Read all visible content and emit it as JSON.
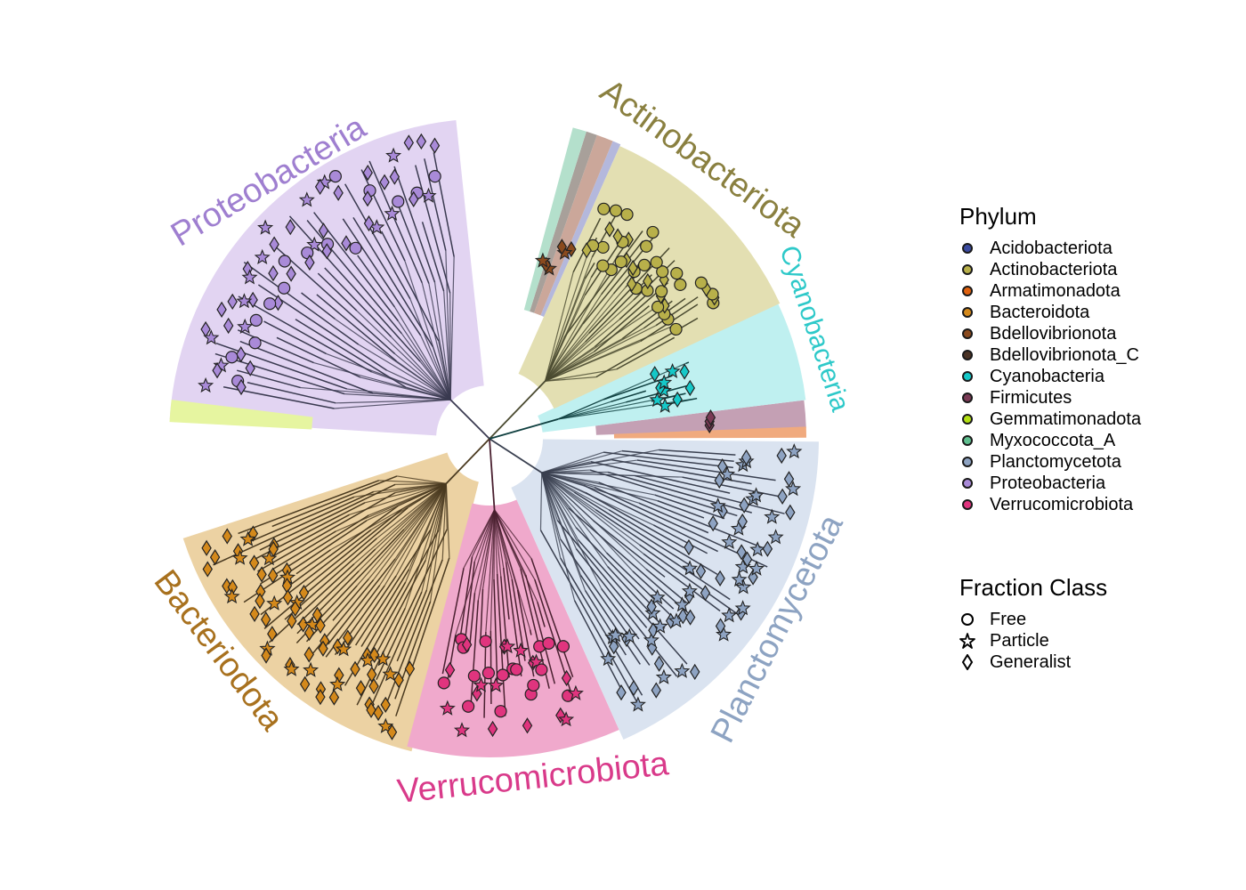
{
  "clades": [
    {
      "name": "Proteobacteria",
      "color": "#9f7fd0",
      "fill": "#e2d4f2"
    },
    {
      "name": "Actinobacteriota",
      "color": "#8a8040",
      "fill": "#e3dfb2"
    },
    {
      "name": "Cyanobacteria",
      "color": "#2ec9c9",
      "fill": "#bff0f0"
    },
    {
      "name": "Planctomycetota",
      "color": "#8da3c2",
      "fill": "#dae3f0"
    },
    {
      "name": "Verrucomicrobiota",
      "color": "#d93a8a",
      "fill": "#f0a9cc"
    },
    {
      "name": "Bacteriodota",
      "color": "#a8711e",
      "fill": "#ecd2a3"
    }
  ],
  "legend_phylum": {
    "title": "Phylum",
    "items": [
      {
        "label": "Acidobacteriota",
        "color": "#3b4ba0"
      },
      {
        "label": "Actinobacteriota",
        "color": "#b8b04a"
      },
      {
        "label": "Armatimonadota",
        "color": "#e0620f"
      },
      {
        "label": "Bacteroidota",
        "color": "#d4891b"
      },
      {
        "label": "Bdellovibrionota",
        "color": "#8a4a1e"
      },
      {
        "label": "Bdellovibrionota_C",
        "color": "#4a3224"
      },
      {
        "label": "Cyanobacteria",
        "color": "#15c8c8"
      },
      {
        "label": "Firmicutes",
        "color": "#7a3a55"
      },
      {
        "label": "Gemmatimonadota",
        "color": "#b3e014"
      },
      {
        "label": "Myxococcota_A",
        "color": "#5fbf8f"
      },
      {
        "label": "Planctomycetota",
        "color": "#8ea3c2"
      },
      {
        "label": "Proteobacteria",
        "color": "#a98ad8"
      },
      {
        "label": "Verrucomicrobiota",
        "color": "#e0347e"
      }
    ]
  },
  "legend_fraction": {
    "title": "Fraction Class",
    "items": [
      {
        "label": "Free",
        "shape": "circle"
      },
      {
        "label": "Particle",
        "shape": "star"
      },
      {
        "label": "Generalist",
        "shape": "diamond"
      }
    ]
  }
}
